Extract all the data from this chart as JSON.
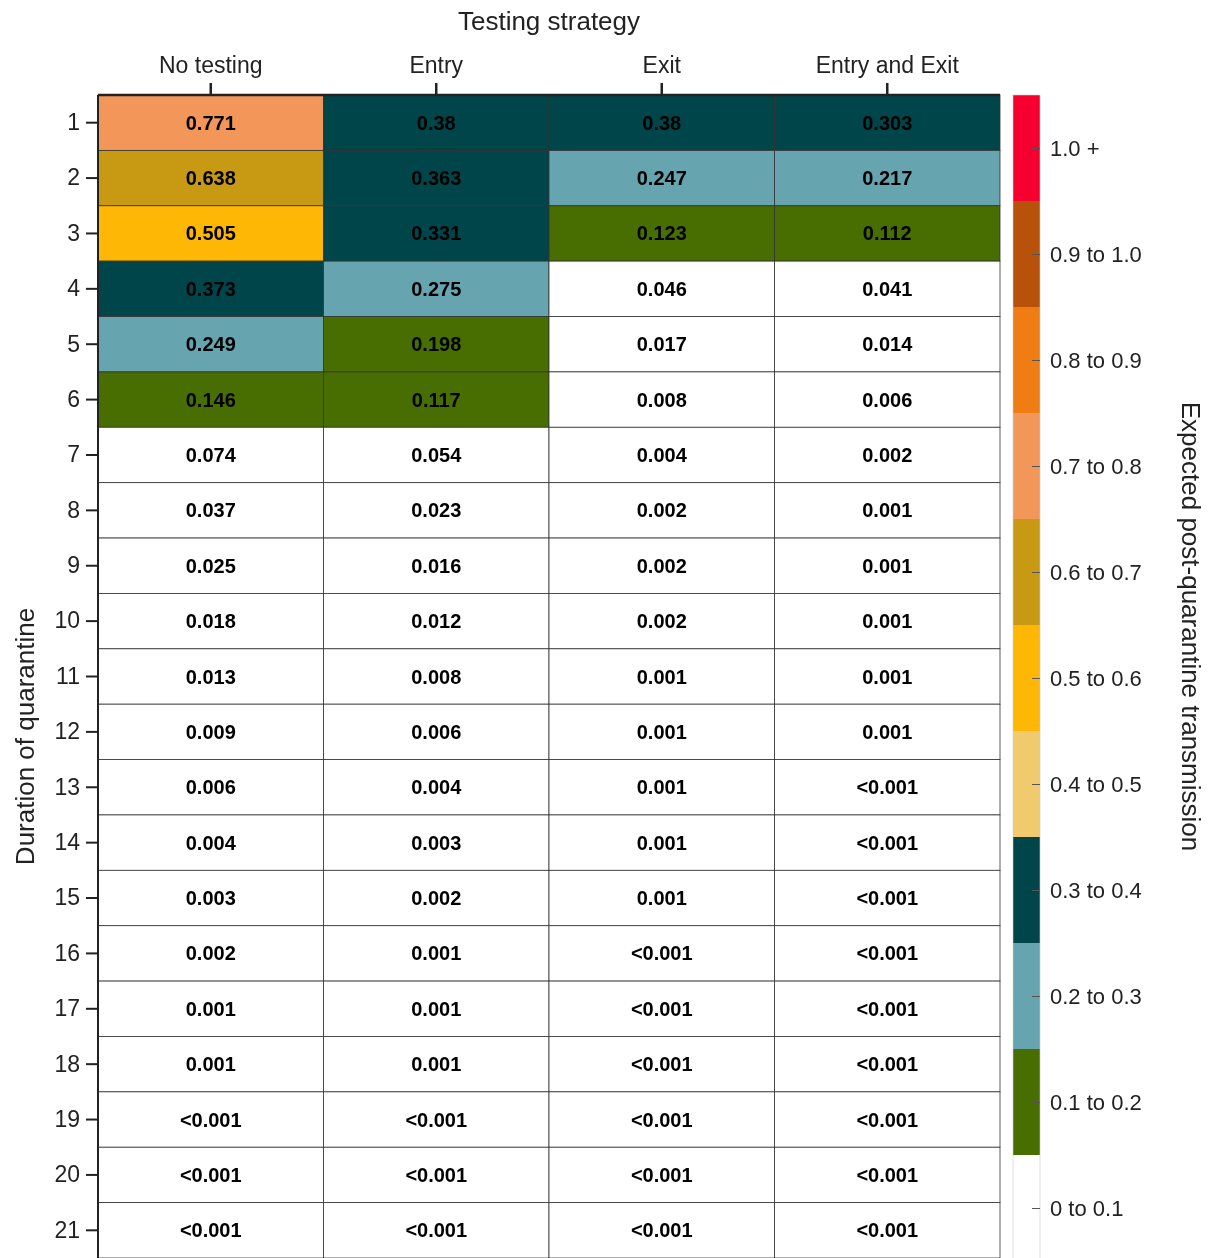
{
  "chart_data": {
    "type": "heatmap",
    "title": "Testing strategy",
    "ylabel": "Duration of quarantine",
    "clabel": "Expected post-quarantine transmission",
    "categories": [
      "No testing",
      "Entry",
      "Exit",
      "Entry and Exit"
    ],
    "y_categories": [
      "1",
      "2",
      "3",
      "4",
      "5",
      "6",
      "7",
      "8",
      "9",
      "10",
      "11",
      "12",
      "13",
      "14",
      "15",
      "16",
      "17",
      "18",
      "19",
      "20",
      "21"
    ],
    "cells": [
      [
        0.771,
        0.38,
        0.38,
        0.303
      ],
      [
        0.638,
        0.363,
        0.247,
        0.217
      ],
      [
        0.505,
        0.331,
        0.123,
        0.112
      ],
      [
        0.373,
        0.275,
        0.046,
        0.041
      ],
      [
        0.249,
        0.198,
        0.017,
        0.014
      ],
      [
        0.146,
        0.117,
        0.008,
        0.006
      ],
      [
        0.074,
        0.054,
        0.004,
        0.002
      ],
      [
        0.037,
        0.023,
        0.002,
        0.001
      ],
      [
        0.025,
        0.016,
        0.002,
        0.001
      ],
      [
        0.018,
        0.012,
        0.002,
        0.001
      ],
      [
        0.013,
        0.008,
        0.001,
        0.001
      ],
      [
        0.009,
        0.006,
        0.001,
        0.001
      ],
      [
        0.006,
        0.004,
        0.001,
        0
      ],
      [
        0.004,
        0.003,
        0.001,
        0
      ],
      [
        0.003,
        0.002,
        0.001,
        0
      ],
      [
        0.002,
        0.001,
        0,
        0
      ],
      [
        0.001,
        0.001,
        0,
        0
      ],
      [
        0.001,
        0.001,
        0,
        0
      ],
      [
        0,
        0,
        0,
        0
      ],
      [
        0,
        0,
        0,
        0
      ],
      [
        0,
        0,
        0,
        0
      ]
    ],
    "cell_labels": [
      [
        "0.771",
        "0.38",
        "0.38",
        "0.303"
      ],
      [
        "0.638",
        "0.363",
        "0.247",
        "0.217"
      ],
      [
        "0.505",
        "0.331",
        "0.123",
        "0.112"
      ],
      [
        "0.373",
        "0.275",
        "0.046",
        "0.041"
      ],
      [
        "0.249",
        "0.198",
        "0.017",
        "0.014"
      ],
      [
        "0.146",
        "0.117",
        "0.008",
        "0.006"
      ],
      [
        "0.074",
        "0.054",
        "0.004",
        "0.002"
      ],
      [
        "0.037",
        "0.023",
        "0.002",
        "0.001"
      ],
      [
        "0.025",
        "0.016",
        "0.002",
        "0.001"
      ],
      [
        "0.018",
        "0.012",
        "0.002",
        "0.001"
      ],
      [
        "0.013",
        "0.008",
        "0.001",
        "0.001"
      ],
      [
        "0.009",
        "0.006",
        "0.001",
        "0.001"
      ],
      [
        "0.006",
        "0.004",
        "0.001",
        "<0.001"
      ],
      [
        "0.004",
        "0.003",
        "0.001",
        "<0.001"
      ],
      [
        "0.003",
        "0.002",
        "0.001",
        "<0.001"
      ],
      [
        "0.002",
        "0.001",
        "<0.001",
        "<0.001"
      ],
      [
        "0.001",
        "0.001",
        "<0.001",
        "<0.001"
      ],
      [
        "0.001",
        "0.001",
        "<0.001",
        "<0.001"
      ],
      [
        "<0.001",
        "<0.001",
        "<0.001",
        "<0.001"
      ],
      [
        "<0.001",
        "<0.001",
        "<0.001",
        "<0.001"
      ],
      [
        "<0.001",
        "<0.001",
        "<0.001",
        "<0.001"
      ]
    ],
    "colors": [
      "#ffffff",
      "#486d00",
      "#66a5b0",
      "#00454a",
      "#f2ca6e",
      "#fdb704",
      "#c89a14",
      "#f39659",
      "#ef7d14",
      "#b8520a",
      "#f5002f"
    ],
    "clim": [
      0,
      1.1
    ],
    "data_labels": true,
    "cticks": [
      {
        "value": 0.05,
        "label": "0 to 0.1"
      },
      {
        "value": 0.15,
        "label": "0.1 to 0.2"
      },
      {
        "value": 0.25,
        "label": "0.2 to 0.3"
      },
      {
        "value": 0.35,
        "label": "0.3 to 0.4"
      },
      {
        "value": 0.45,
        "label": "0.4 to 0.5"
      },
      {
        "value": 0.55,
        "label": "0.5 to 0.6"
      },
      {
        "value": 0.65,
        "label": "0.6 to 0.7"
      },
      {
        "value": 0.75,
        "label": "0.7 to 0.8"
      },
      {
        "value": 0.85,
        "label": "0.8 to 0.9"
      },
      {
        "value": 0.95,
        "label": "0.9 to 1.0"
      },
      {
        "value": 1.05,
        "label": "1.0 +"
      }
    ]
  }
}
